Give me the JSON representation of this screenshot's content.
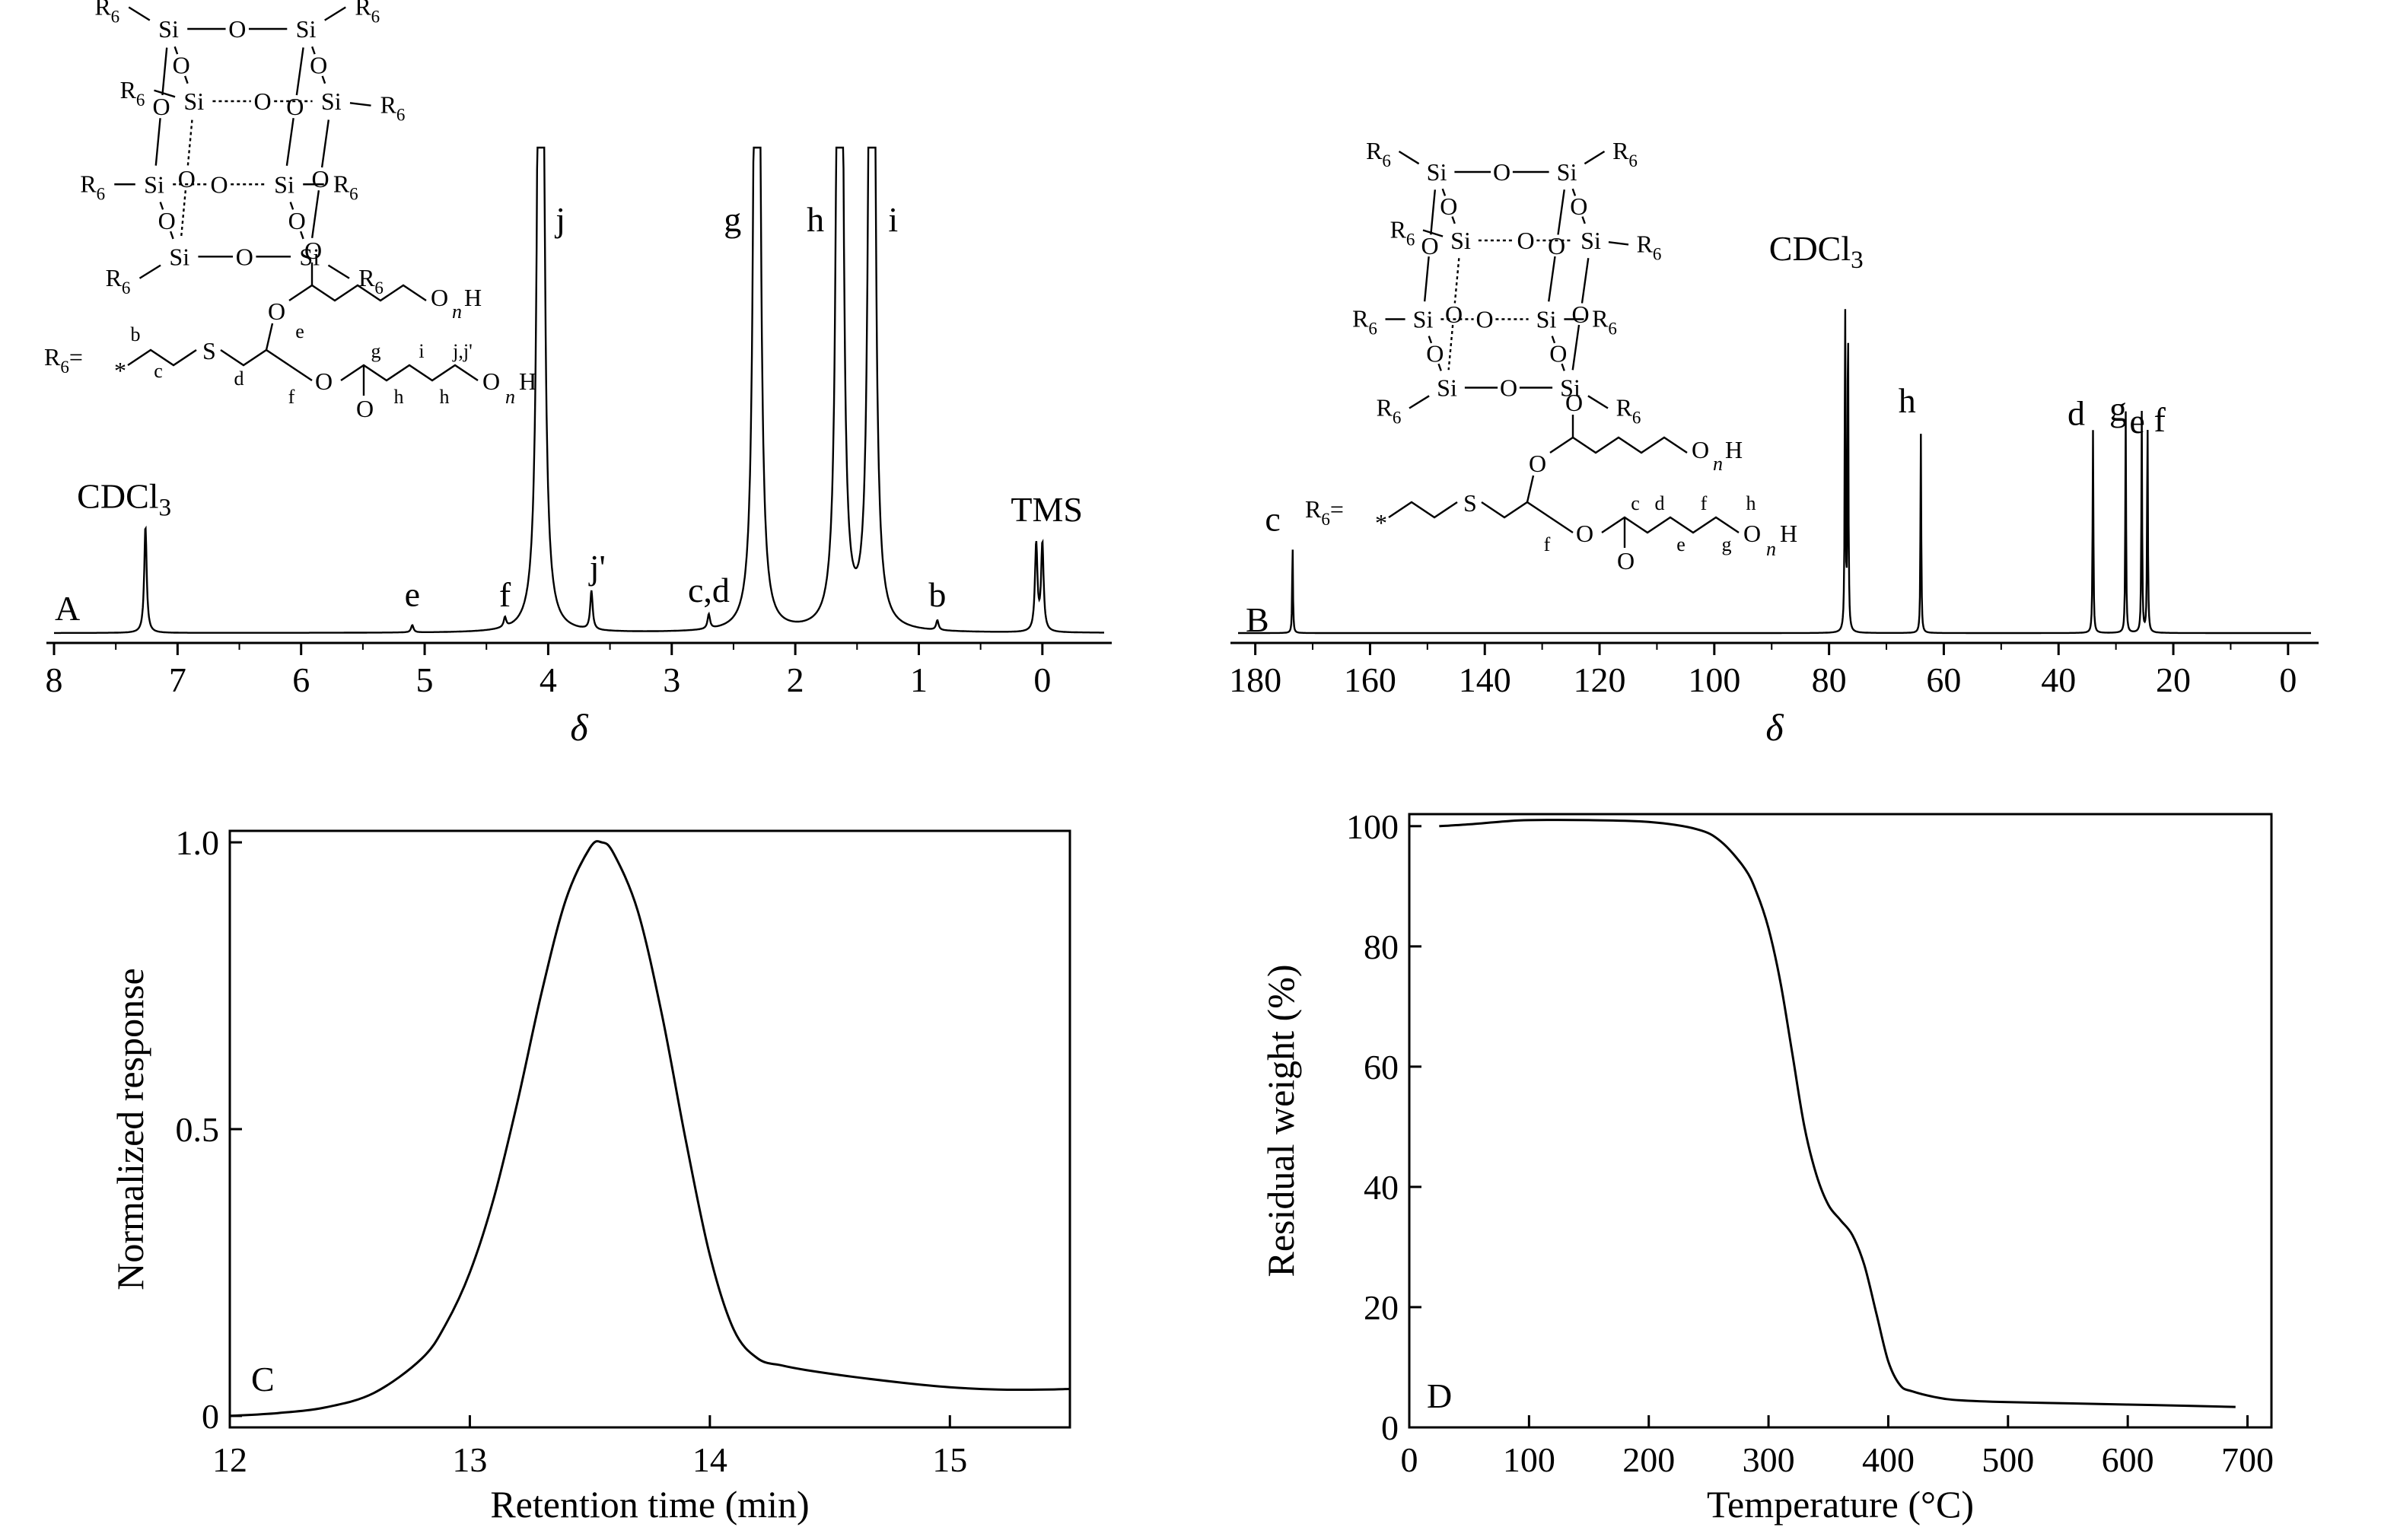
{
  "chart_data": [
    {
      "panel": "A",
      "type": "line",
      "xlabel": "δ",
      "ylabel": "",
      "xlim": [
        8.0,
        -0.5
      ],
      "x_reversed": true,
      "xticks": [
        8,
        7,
        6,
        5,
        4,
        3,
        2,
        1,
        0
      ],
      "grid": false,
      "series": [
        {
          "peaks": [
            {
              "x": 7.26,
              "height": 0.22,
              "label": "CDCl3"
            },
            {
              "x": 5.1,
              "height": 0.015,
              "label": "e"
            },
            {
              "x": 4.35,
              "height": 0.02,
              "label": "f"
            },
            {
              "x": 4.06,
              "height": 1.0,
              "label": "j",
              "clipped": true
            },
            {
              "x": 3.65,
              "height": 0.08,
              "label": "j'"
            },
            {
              "x": 2.7,
              "height": 0.03,
              "label": "c,d"
            },
            {
              "x": 2.31,
              "height": 1.0,
              "label": "g",
              "clipped": true
            },
            {
              "x": 1.64,
              "height": 1.0,
              "label": "h",
              "clipped": true
            },
            {
              "x": 1.38,
              "height": 1.0,
              "label": "i",
              "clipped": true
            },
            {
              "x": 0.85,
              "height": 0.02,
              "label": "b"
            },
            {
              "x": 0.05,
              "height": 0.18,
              "label": "TMS"
            },
            {
              "x": 0.0,
              "height": 0.18,
              "label": ""
            }
          ]
        }
      ]
    },
    {
      "panel": "B",
      "type": "line",
      "xlabel": "δ",
      "ylabel": "",
      "xlim": [
        183,
        -4
      ],
      "x_reversed": true,
      "xticks": [
        180,
        160,
        140,
        120,
        100,
        80,
        60,
        40,
        20,
        0
      ],
      "grid": false,
      "series": [
        {
          "peaks": [
            {
              "x": 173.5,
              "height": 0.2,
              "label": "c"
            },
            {
              "x": 77.2,
              "height": 0.78,
              "label": "CDCl3"
            },
            {
              "x": 76.7,
              "height": 0.76,
              "label": ""
            },
            {
              "x": 64.0,
              "height": 0.45,
              "label": "h"
            },
            {
              "x": 34.0,
              "height": 0.46,
              "label": "d"
            },
            {
              "x": 28.3,
              "height": 0.5,
              "label": "g"
            },
            {
              "x": 25.5,
              "height": 0.5,
              "label": "e"
            },
            {
              "x": 24.5,
              "height": 0.5,
              "label": "f"
            }
          ]
        }
      ]
    },
    {
      "panel": "C",
      "type": "line",
      "xlabel": "Retention time (min)",
      "ylabel": "Normalized response",
      "xlim": [
        12,
        15.5
      ],
      "ylim": [
        -0.02,
        1.02
      ],
      "xticks": [
        12,
        13,
        14,
        15
      ],
      "yticks": [
        0,
        0.5,
        1.0
      ],
      "ytick_labels": [
        "0",
        "0.5",
        "1.0"
      ],
      "grid": false,
      "series": [
        {
          "x": [
            12.0,
            12.2,
            12.4,
            12.6,
            12.8,
            12.9,
            13.0,
            13.1,
            13.2,
            13.3,
            13.4,
            13.5,
            13.55,
            13.6,
            13.7,
            13.8,
            13.9,
            14.0,
            14.1,
            14.2,
            14.3,
            14.4,
            14.6,
            14.8,
            15.0,
            15.2,
            15.4,
            15.5
          ],
          "y": [
            0.0,
            0.005,
            0.015,
            0.04,
            0.1,
            0.16,
            0.25,
            0.38,
            0.55,
            0.74,
            0.9,
            0.99,
            1.0,
            0.98,
            0.88,
            0.7,
            0.48,
            0.28,
            0.15,
            0.1,
            0.088,
            0.08,
            0.068,
            0.058,
            0.05,
            0.046,
            0.046,
            0.047
          ]
        }
      ]
    },
    {
      "panel": "D",
      "type": "line",
      "xlabel": "Temperature (°C)",
      "ylabel": "Residual weight (%)",
      "xlim": [
        0,
        720
      ],
      "ylim": [
        0,
        102
      ],
      "xticks": [
        0,
        100,
        200,
        300,
        400,
        500,
        600,
        700
      ],
      "yticks": [
        0,
        20,
        40,
        60,
        80,
        100
      ],
      "grid": false,
      "series": [
        {
          "x": [
            25,
            50,
            80,
            100,
            150,
            200,
            240,
            260,
            280,
            290,
            300,
            310,
            320,
            330,
            340,
            350,
            360,
            370,
            380,
            390,
            400,
            410,
            420,
            440,
            460,
            500,
            550,
            600,
            650,
            690
          ],
          "y": [
            100,
            100.3,
            100.8,
            101,
            101,
            100.7,
            99.5,
            97.5,
            93,
            89,
            83,
            74,
            62,
            50,
            42,
            37,
            34.5,
            32,
            27,
            19,
            11,
            7,
            6,
            5,
            4.5,
            4.2,
            4.0,
            3.8,
            3.6,
            3.4
          ]
        }
      ]
    }
  ],
  "structures": {
    "cage_A": {
      "atoms": [
        "Si",
        "Si",
        "Si",
        "Si",
        "Si",
        "Si",
        "Si",
        "Si"
      ],
      "oxygens": [
        "O",
        "O",
        "O",
        "O",
        "O",
        "O",
        "O",
        "O",
        "O",
        "O",
        "O",
        "O"
      ],
      "substituents": [
        "R6",
        "R6",
        "R6",
        "R6",
        "R6",
        "R6",
        "R6",
        "R6"
      ]
    },
    "chain_A": {
      "r6_label": "R6=",
      "star": "*",
      "sulfur": "S",
      "letters": [
        "b",
        "c",
        "d",
        "e",
        "f",
        "g",
        "h",
        "i",
        "h",
        "j,j'"
      ],
      "o_labels": [
        "O",
        "O",
        "O",
        "O",
        "O",
        "O"
      ],
      "h_labels": [
        "H",
        "H"
      ],
      "n_labels": [
        "n",
        "n"
      ]
    },
    "cage_B": {
      "atoms": [
        "Si",
        "Si",
        "Si",
        "Si",
        "Si",
        "Si",
        "Si",
        "Si"
      ],
      "substituents": [
        "R6",
        "R6",
        "R6",
        "R6",
        "R6",
        "R6",
        "R6",
        "R6"
      ]
    },
    "chain_B": {
      "r6_label": "R6=",
      "star": "*",
      "sulfur": "S",
      "letters": [
        "f",
        "c",
        "d",
        "e",
        "f",
        "g",
        "h"
      ],
      "o_labels": [
        "O",
        "O",
        "O",
        "O",
        "O",
        "O"
      ],
      "h_labels": [
        "H",
        "H"
      ],
      "n_labels": [
        "n",
        "n"
      ]
    }
  }
}
